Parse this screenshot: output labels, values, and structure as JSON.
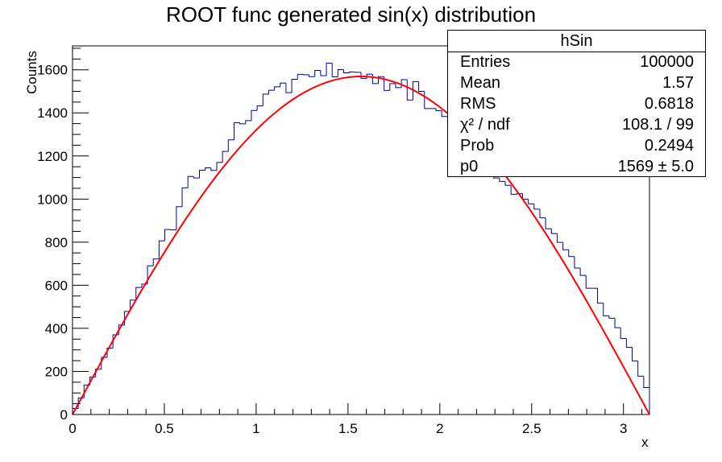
{
  "chart_data": {
    "type": "histogram",
    "title": "ROOT func generated sin(x) distribution",
    "xlabel": "x",
    "ylabel": "Counts",
    "xlim": [
      0,
      3.1416
    ],
    "ylim": [
      0,
      1711
    ],
    "xticks": [
      0,
      0.5,
      1,
      1.5,
      2,
      2.5,
      3
    ],
    "xtick_labels": [
      "0",
      "0.5",
      "1",
      "1.5",
      "2",
      "2.5",
      "3"
    ],
    "yticks": [
      0,
      200,
      400,
      600,
      800,
      1000,
      1200,
      1400,
      1600
    ],
    "ytick_labels": [
      "0",
      "200",
      "400",
      "600",
      "800",
      "1000",
      "1200",
      "1400",
      "1600"
    ],
    "grid": false,
    "series": [
      {
        "kind": "histogram",
        "nbins": 100,
        "bin_edges": [
          0,
          3.1416
        ],
        "values": [
          28,
          77,
          137,
          174,
          210,
          265,
          308,
          370,
          415,
          478,
          531,
          590,
          605,
          690,
          722,
          806,
          859,
          857,
          965,
          1052,
          1105,
          1098,
          1134,
          1145,
          1133,
          1170,
          1221,
          1275,
          1354,
          1349,
          1364,
          1411,
          1432,
          1487,
          1505,
          1521,
          1538,
          1494,
          1556,
          1579,
          1577,
          1568,
          1597,
          1573,
          1631,
          1567,
          1601,
          1586,
          1590,
          1588,
          1560,
          1580,
          1536,
          1568,
          1504,
          1536,
          1517,
          1554,
          1460,
          1545,
          1500,
          1420,
          1420,
          1410,
          1383,
          1345,
          1358,
          1294,
          1307,
          1256,
          1217,
          1191,
          1154,
          1098,
          1082,
          1064,
          1022,
          1025,
          1000,
          978,
          953,
          913,
          862,
          840,
          799,
          765,
          733,
          680,
          646,
          586,
          586,
          517,
          458,
          447,
          403,
          353,
          312,
          249,
          178,
          125
        ],
        "color": "#000099"
      },
      {
        "kind": "fit",
        "function": "p0*sin(x)",
        "p0": 1569,
        "color": "#ff0000"
      }
    ],
    "stats_box": {
      "name": "hSin",
      "rows": [
        {
          "key": "Entries",
          "value": "100000"
        },
        {
          "key": "Mean",
          "value": "1.57"
        },
        {
          "key": "RMS",
          "value": "0.6818"
        },
        {
          "key": "χ² / ndf",
          "value": "108.1 / 99"
        },
        {
          "key": "Prob",
          "value": "0.2494"
        },
        {
          "key": "p0",
          "value": "1569 ± 5.0"
        }
      ],
      "placement": "top-right"
    }
  }
}
